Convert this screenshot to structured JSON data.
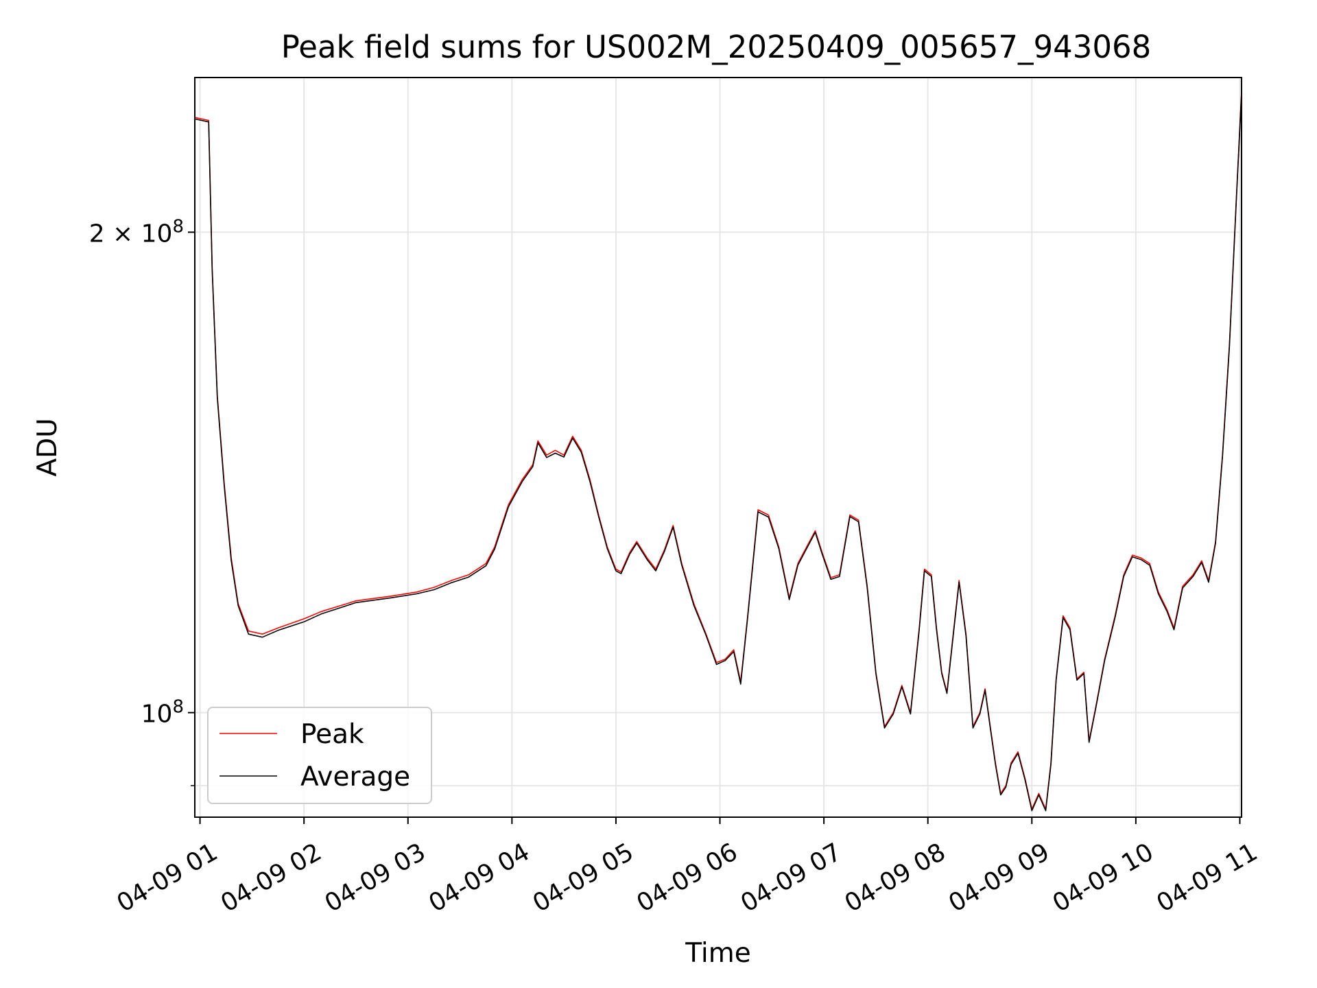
{
  "chart_data": {
    "type": "line",
    "title": "Peak field sums for US002M_20250409_005657_943068",
    "xlabel": "Time",
    "ylabel": "ADU",
    "yscale": "log",
    "grid": true,
    "legend_position": "lower-left",
    "x_ticks": [
      "04-09 01",
      "04-09 02",
      "04-09 03",
      "04-09 04",
      "04-09 05",
      "04-09 06",
      "04-09 07",
      "04-09 08",
      "04-09 09",
      "04-09 10",
      "04-09 11"
    ],
    "y_ticks": [
      {
        "value": 100000000,
        "base": "10",
        "exp": "8",
        "coef": ""
      },
      {
        "value": 200000000,
        "base": "10",
        "exp": "8",
        "coef": "2×"
      }
    ],
    "x_range": [
      "2025-04-09 00:57",
      "2025-04-09 11:01"
    ],
    "y_range": [
      86000000,
      250000000
    ],
    "series": [
      {
        "name": "Peak",
        "color": "#ff0000",
        "points": [
          [
            "00:57",
            236000000
          ],
          [
            "01:05",
            235000000
          ],
          [
            "01:07",
            190000000
          ],
          [
            "01:10",
            158000000
          ],
          [
            "01:14",
            139000000
          ],
          [
            "01:18",
            125000000
          ],
          [
            "01:22",
            117000000
          ],
          [
            "01:28",
            112500000
          ],
          [
            "01:36",
            112000000
          ],
          [
            "01:45",
            113000000
          ],
          [
            "02:00",
            114500000
          ],
          [
            "02:10",
            115700000
          ],
          [
            "02:30",
            117500000
          ],
          [
            "02:50",
            118300000
          ],
          [
            "03:05",
            119000000
          ],
          [
            "03:15",
            119800000
          ],
          [
            "03:25",
            121000000
          ],
          [
            "03:35",
            122000000
          ],
          [
            "03:45",
            124000000
          ],
          [
            "03:50",
            127000000
          ],
          [
            "03:58",
            135000000
          ],
          [
            "04:06",
            140000000
          ],
          [
            "04:12",
            143000000
          ],
          [
            "04:15",
            148000000
          ],
          [
            "04:20",
            145000000
          ],
          [
            "04:25",
            146000000
          ],
          [
            "04:30",
            145000000
          ],
          [
            "04:35",
            149000000
          ],
          [
            "04:40",
            146000000
          ],
          [
            "04:45",
            140000000
          ],
          [
            "04:50",
            133000000
          ],
          [
            "04:55",
            127000000
          ],
          [
            "05:00",
            123000000
          ],
          [
            "05:03",
            122500000
          ],
          [
            "05:08",
            126000000
          ],
          [
            "05:12",
            128000000
          ],
          [
            "05:18",
            125000000
          ],
          [
            "05:23",
            123000000
          ],
          [
            "05:28",
            126500000
          ],
          [
            "05:33",
            131000000
          ],
          [
            "05:38",
            124000000
          ],
          [
            "05:45",
            117000000
          ],
          [
            "05:52",
            112000000
          ],
          [
            "05:58",
            107500000
          ],
          [
            "06:03",
            108000000
          ],
          [
            "06:08",
            109500000
          ],
          [
            "06:12",
            104500000
          ],
          [
            "06:16",
            115000000
          ],
          [
            "06:22",
            134000000
          ],
          [
            "06:28",
            133000000
          ],
          [
            "06:34",
            127000000
          ],
          [
            "06:40",
            118000000
          ],
          [
            "06:45",
            124000000
          ],
          [
            "06:50",
            127000000
          ],
          [
            "06:55",
            130000000
          ],
          [
            "06:59",
            126000000
          ],
          [
            "07:04",
            121500000
          ],
          [
            "07:09",
            122000000
          ],
          [
            "07:15",
            133000000
          ],
          [
            "07:20",
            132000000
          ],
          [
            "07:25",
            120000000
          ],
          [
            "07:30",
            106000000
          ],
          [
            "07:35",
            98000000
          ],
          [
            "07:40",
            100000000
          ],
          [
            "07:45",
            104000000
          ],
          [
            "07:50",
            100000000
          ],
          [
            "07:55",
            113000000
          ],
          [
            "07:58",
            123000000
          ],
          [
            "08:02",
            122000000
          ],
          [
            "08:05",
            113000000
          ],
          [
            "08:08",
            106000000
          ],
          [
            "08:11",
            103000000
          ],
          [
            "08:15",
            113000000
          ],
          [
            "08:18",
            121000000
          ],
          [
            "08:22",
            112000000
          ],
          [
            "08:26",
            98000000
          ],
          [
            "08:30",
            100000000
          ],
          [
            "08:33",
            103500000
          ],
          [
            "08:36",
            98000000
          ],
          [
            "08:39",
            93000000
          ],
          [
            "08:42",
            89000000
          ],
          [
            "08:45",
            90000000
          ],
          [
            "08:48",
            93000000
          ],
          [
            "08:52",
            94500000
          ],
          [
            "08:56",
            91000000
          ],
          [
            "09:00",
            87000000
          ],
          [
            "09:04",
            89000000
          ],
          [
            "09:08",
            87000000
          ],
          [
            "09:11",
            93000000
          ],
          [
            "09:14",
            105000000
          ],
          [
            "09:18",
            115000000
          ],
          [
            "09:22",
            113000000
          ],
          [
            "09:26",
            105000000
          ],
          [
            "09:30",
            106000000
          ],
          [
            "09:33",
            96000000
          ],
          [
            "09:37",
            101000000
          ],
          [
            "09:42",
            108000000
          ],
          [
            "09:48",
            115000000
          ],
          [
            "09:53",
            122000000
          ],
          [
            "09:58",
            125500000
          ],
          [
            "10:03",
            125000000
          ],
          [
            "10:08",
            124000000
          ],
          [
            "10:13",
            119000000
          ],
          [
            "10:18",
            116000000
          ],
          [
            "10:22",
            113000000
          ],
          [
            "10:27",
            120000000
          ],
          [
            "10:33",
            122000000
          ],
          [
            "10:38",
            124500000
          ],
          [
            "10:42",
            121000000
          ],
          [
            "10:46",
            128000000
          ],
          [
            "10:50",
            145000000
          ],
          [
            "10:54",
            170000000
          ],
          [
            "10:58",
            210000000
          ],
          [
            "11:01",
            245000000
          ]
        ]
      },
      {
        "name": "Average",
        "color": "#000000",
        "points": [
          [
            "00:57",
            235500000
          ],
          [
            "01:05",
            234500000
          ],
          [
            "01:07",
            189500000
          ],
          [
            "01:10",
            157500000
          ],
          [
            "01:14",
            138500000
          ],
          [
            "01:18",
            124500000
          ],
          [
            "01:22",
            116700000
          ],
          [
            "01:28",
            112000000
          ],
          [
            "01:36",
            111500000
          ],
          [
            "01:45",
            112600000
          ],
          [
            "02:00",
            114000000
          ],
          [
            "02:10",
            115300000
          ],
          [
            "02:30",
            117200000
          ],
          [
            "02:50",
            118000000
          ],
          [
            "03:05",
            118700000
          ],
          [
            "03:15",
            119400000
          ],
          [
            "03:25",
            120600000
          ],
          [
            "03:35",
            121600000
          ],
          [
            "03:45",
            123600000
          ],
          [
            "03:50",
            126600000
          ],
          [
            "03:58",
            134600000
          ],
          [
            "04:06",
            139600000
          ],
          [
            "04:12",
            142600000
          ],
          [
            "04:15",
            147600000
          ],
          [
            "04:20",
            144500000
          ],
          [
            "04:25",
            145400000
          ],
          [
            "04:30",
            144600000
          ],
          [
            "04:35",
            148600000
          ],
          [
            "04:40",
            145600000
          ],
          [
            "04:45",
            139600000
          ],
          [
            "04:50",
            132700000
          ],
          [
            "04:55",
            126700000
          ],
          [
            "05:00",
            122700000
          ],
          [
            "05:03",
            122200000
          ],
          [
            "05:08",
            125700000
          ],
          [
            "05:12",
            127700000
          ],
          [
            "05:18",
            124700000
          ],
          [
            "05:23",
            122700000
          ],
          [
            "05:28",
            126200000
          ],
          [
            "05:33",
            130700000
          ],
          [
            "05:38",
            123700000
          ],
          [
            "05:45",
            116700000
          ],
          [
            "05:52",
            111800000
          ],
          [
            "05:58",
            107200000
          ],
          [
            "06:03",
            107800000
          ],
          [
            "06:08",
            109200000
          ],
          [
            "06:12",
            104200000
          ],
          [
            "06:16",
            114700000
          ],
          [
            "06:22",
            133600000
          ],
          [
            "06:28",
            132600000
          ],
          [
            "06:34",
            126700000
          ],
          [
            "06:40",
            117700000
          ],
          [
            "06:45",
            123700000
          ],
          [
            "06:50",
            126700000
          ],
          [
            "06:55",
            129700000
          ],
          [
            "06:59",
            125700000
          ],
          [
            "07:04",
            121200000
          ],
          [
            "07:09",
            121700000
          ],
          [
            "07:15",
            132700000
          ],
          [
            "07:20",
            131700000
          ],
          [
            "07:25",
            119700000
          ],
          [
            "07:30",
            105800000
          ],
          [
            "07:35",
            97800000
          ],
          [
            "07:40",
            99800000
          ],
          [
            "07:45",
            103800000
          ],
          [
            "07:50",
            99800000
          ],
          [
            "07:55",
            112700000
          ],
          [
            "07:58",
            122700000
          ],
          [
            "08:02",
            121700000
          ],
          [
            "08:05",
            112700000
          ],
          [
            "08:08",
            105800000
          ],
          [
            "08:11",
            102800000
          ],
          [
            "08:15",
            112700000
          ],
          [
            "08:18",
            120700000
          ],
          [
            "08:22",
            111700000
          ],
          [
            "08:26",
            97800000
          ],
          [
            "08:30",
            99800000
          ],
          [
            "08:33",
            103300000
          ],
          [
            "08:36",
            97800000
          ],
          [
            "08:39",
            92800000
          ],
          [
            "08:42",
            88800000
          ],
          [
            "08:45",
            89800000
          ],
          [
            "08:48",
            92800000
          ],
          [
            "08:52",
            94300000
          ],
          [
            "08:56",
            90800000
          ],
          [
            "09:00",
            86800000
          ],
          [
            "09:04",
            88800000
          ],
          [
            "09:08",
            86800000
          ],
          [
            "09:11",
            92800000
          ],
          [
            "09:14",
            104800000
          ],
          [
            "09:18",
            114700000
          ],
          [
            "09:22",
            112700000
          ],
          [
            "09:26",
            104800000
          ],
          [
            "09:30",
            105800000
          ],
          [
            "09:33",
            95800000
          ],
          [
            "09:37",
            100800000
          ],
          [
            "09:42",
            107800000
          ],
          [
            "09:48",
            114700000
          ],
          [
            "09:53",
            121700000
          ],
          [
            "09:58",
            125200000
          ],
          [
            "10:03",
            124700000
          ],
          [
            "10:08",
            123700000
          ],
          [
            "10:13",
            118700000
          ],
          [
            "10:18",
            115700000
          ],
          [
            "10:22",
            112700000
          ],
          [
            "10:27",
            119700000
          ],
          [
            "10:33",
            121700000
          ],
          [
            "10:38",
            124200000
          ],
          [
            "10:42",
            120700000
          ],
          [
            "10:46",
            127700000
          ],
          [
            "10:50",
            144600000
          ],
          [
            "10:54",
            169500000
          ],
          [
            "10:58",
            209400000
          ],
          [
            "11:01",
            244400000
          ]
        ]
      }
    ]
  }
}
